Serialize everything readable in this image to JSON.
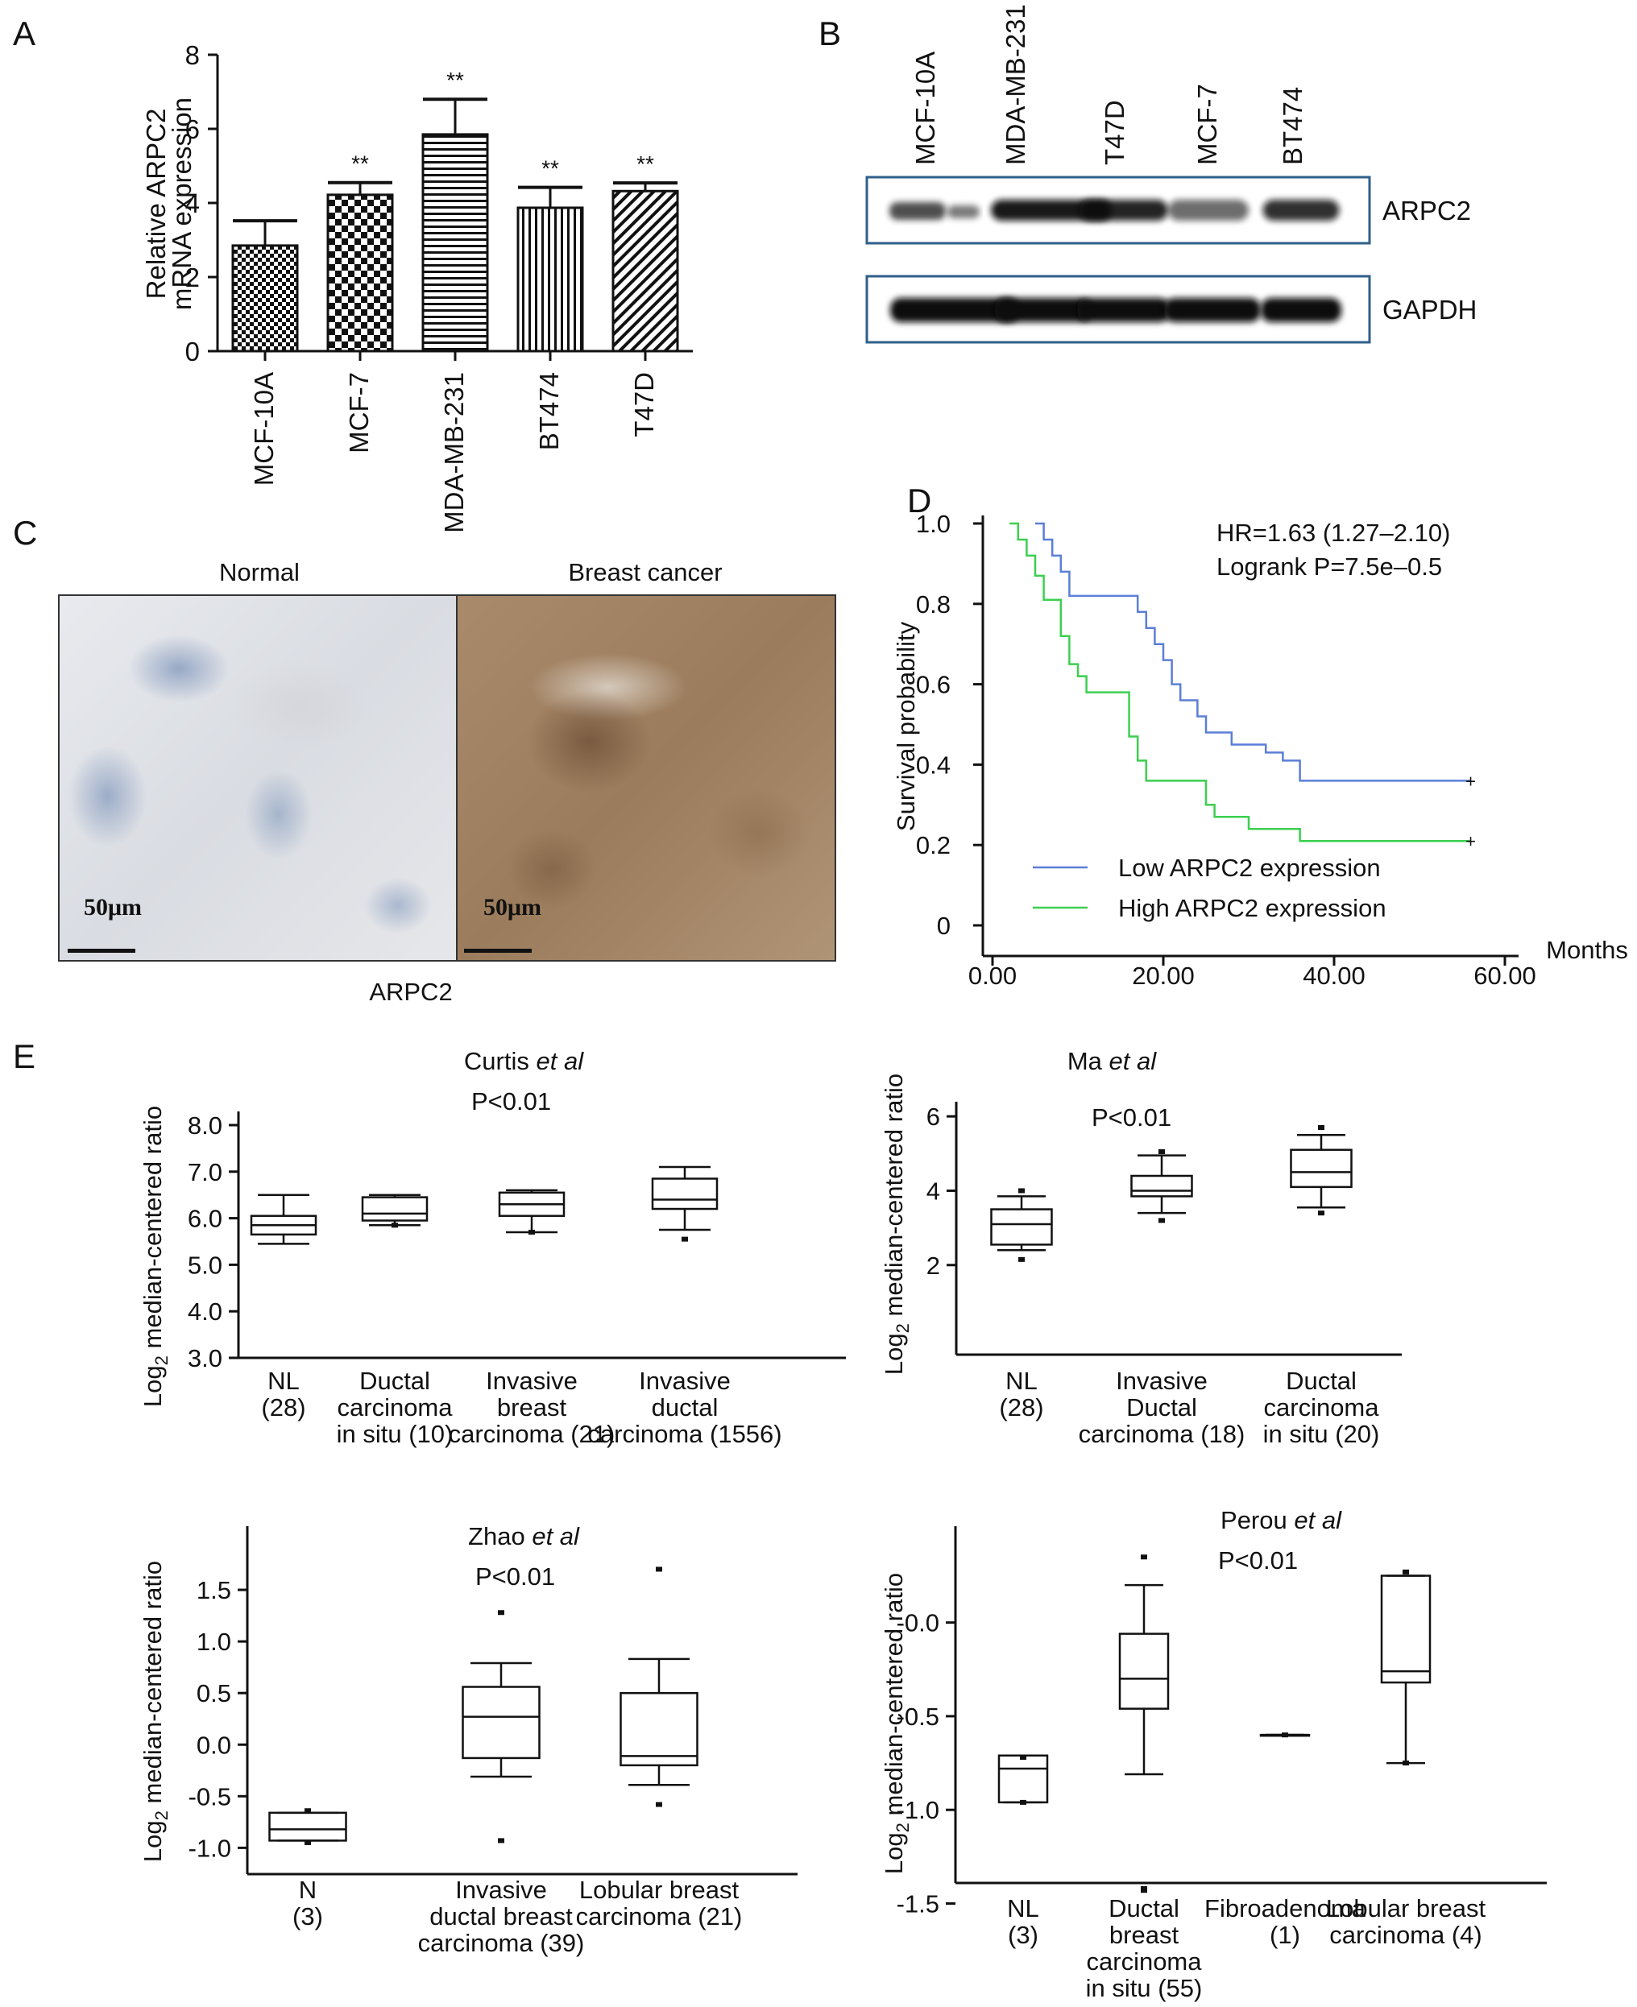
{
  "panels": {
    "a": "A",
    "b": "B",
    "c": "C",
    "d": "D",
    "e": "E"
  },
  "chart_data": [
    {
      "panel": "A",
      "type": "bar",
      "ylabel": [
        "Relative ARPC2",
        "mRNA expression"
      ],
      "ylim": [
        0,
        8
      ],
      "yticks": [
        0,
        2,
        4,
        6,
        8
      ],
      "categories": [
        "MCF-10A",
        "MCF-7",
        "MDA-MB-231",
        "BT474",
        "T47D"
      ],
      "values": [
        2.85,
        4.22,
        5.85,
        3.87,
        4.32
      ],
      "errors": [
        0.67,
        0.33,
        0.95,
        0.55,
        0.22
      ],
      "significance": [
        "",
        "**",
        "**",
        "**",
        "**"
      ],
      "patterns": [
        "checker-small",
        "checker-large",
        "horizontal-lines",
        "vertical-lines",
        "diagonal-lines"
      ]
    },
    {
      "panel": "B",
      "type": "western-blot",
      "lanes": [
        "MCF-10A",
        "MDA-MB-231",
        "T47D",
        "MCF-7",
        "BT474"
      ],
      "bands": [
        {
          "name": "ARPC2",
          "intensity": [
            0.8,
            0.95,
            0.9,
            0.6,
            0.85
          ]
        },
        {
          "name": "GAPDH",
          "intensity": [
            1,
            1,
            1,
            1,
            1
          ]
        }
      ],
      "border_color": "#2f5f8a"
    },
    {
      "panel": "D",
      "type": "line",
      "ylabel": "Survival probability",
      "xlabel": "Months",
      "xlim": [
        0,
        60
      ],
      "ylim": [
        0,
        1
      ],
      "xticks": [
        "0.00",
        "20.00",
        "40.00",
        "60.00"
      ],
      "yticks": [
        "0",
        "0.2",
        "0.4",
        "0.6",
        "0.8",
        "1.0"
      ],
      "annotations": [
        "HR=1.63 (1.27–2.10)",
        "Logrank P=7.5e–0.5"
      ],
      "series": [
        {
          "name": "Low ARPC2 expression",
          "color": "#5b7fd6",
          "points": [
            [
              5,
              1
            ],
            [
              6,
              0.96
            ],
            [
              7,
              0.92
            ],
            [
              8,
              0.88
            ],
            [
              9,
              0.82
            ],
            [
              16,
              0.82
            ],
            [
              17,
              0.78
            ],
            [
              18,
              0.74
            ],
            [
              19,
              0.7
            ],
            [
              20,
              0.66
            ],
            [
              21,
              0.6
            ],
            [
              22,
              0.56
            ],
            [
              24,
              0.52
            ],
            [
              25,
              0.48
            ],
            [
              28,
              0.45
            ],
            [
              32,
              0.43
            ],
            [
              34,
              0.41
            ],
            [
              36,
              0.36
            ],
            [
              56,
              0.36
            ]
          ]
        },
        {
          "name": "High ARPC2 expression",
          "color": "#3bcf4f",
          "points": [
            [
              2,
              1
            ],
            [
              3,
              0.96
            ],
            [
              4,
              0.92
            ],
            [
              5,
              0.87
            ],
            [
              6,
              0.81
            ],
            [
              8,
              0.72
            ],
            [
              9,
              0.65
            ],
            [
              10,
              0.62
            ],
            [
              11,
              0.58
            ],
            [
              15,
              0.58
            ],
            [
              16,
              0.47
            ],
            [
              17,
              0.41
            ],
            [
              18,
              0.36
            ],
            [
              24,
              0.36
            ],
            [
              25,
              0.3
            ],
            [
              26,
              0.27
            ],
            [
              30,
              0.24
            ],
            [
              36,
              0.21
            ],
            [
              56,
              0.21
            ]
          ]
        }
      ]
    },
    {
      "panel": "E1",
      "type": "box",
      "title_main": "Curtis ",
      "title_italic": "et al",
      "pvalue": "P<0.01",
      "ylabel": "median-centered ratio",
      "ylim": [
        3,
        8
      ],
      "yticks": [
        "3.0",
        "4.0",
        "5.0",
        "6.0",
        "7.0",
        "8.0"
      ],
      "categories": [
        [
          "NL",
          "(28)"
        ],
        [
          "Ductal",
          "carcinoma",
          "in situ (10)"
        ],
        [
          "Invasive",
          "breast",
          "carcinoma (21)"
        ],
        [
          "Invasive",
          "ductal",
          "carcinoma (1556)"
        ]
      ],
      "boxes": [
        {
          "min": 5.45,
          "q1": 5.65,
          "median": 5.85,
          "q3": 6.05,
          "max": 6.5,
          "outliers": []
        },
        {
          "min": 5.85,
          "q1": 5.95,
          "median": 6.1,
          "q3": 6.45,
          "max": 6.5,
          "outliers": [
            5.85
          ]
        },
        {
          "min": 5.7,
          "q1": 6.05,
          "median": 6.3,
          "q3": 6.55,
          "max": 6.6,
          "outliers": [
            5.7
          ]
        },
        {
          "min": 5.75,
          "q1": 6.2,
          "median": 6.4,
          "q3": 6.85,
          "max": 7.1,
          "outliers": [
            5.55
          ]
        }
      ]
    },
    {
      "panel": "E2",
      "type": "box",
      "title_main": "Ma ",
      "title_italic": "et al",
      "pvalue": "P<0.01",
      "ylabel": "median-centered ratio",
      "ylim": [
        0.5,
        7
      ],
      "yticks": [
        "2",
        "4",
        "6"
      ],
      "categories": [
        [
          "NL",
          "(28)"
        ],
        [
          "Invasive",
          "Ductal",
          "carcinoma (18)"
        ],
        [
          "Ductal",
          "carcinoma",
          "in situ (20)"
        ]
      ],
      "boxes": [
        {
          "min": 2.4,
          "q1": 2.55,
          "median": 3.1,
          "q3": 3.5,
          "max": 3.85,
          "outliers": [
            2.15,
            4.0
          ]
        },
        {
          "min": 3.4,
          "q1": 3.85,
          "median": 4.0,
          "q3": 4.4,
          "max": 4.95,
          "outliers": [
            3.2,
            5.05
          ]
        },
        {
          "min": 3.55,
          "q1": 4.1,
          "median": 4.5,
          "q3": 5.1,
          "max": 5.5,
          "outliers": [
            3.4,
            5.7
          ]
        }
      ]
    },
    {
      "panel": "E3",
      "type": "box",
      "title_main": "Zhao ",
      "title_italic": "et al",
      "pvalue": "P<0.01",
      "ylabel": "median-centered ratio",
      "ylim": [
        -1.2,
        2.0
      ],
      "yticks": [
        "-1.0",
        "-0.5",
        "0.0",
        "0.5",
        "1.0",
        "1.5"
      ],
      "categories": [
        [
          "N",
          "(3)"
        ],
        [
          "Invasive",
          "ductal breast",
          "carcinoma (39)"
        ],
        [
          "Lobular breast",
          "carcinoma (21)"
        ]
      ],
      "boxes": [
        {
          "min": -0.93,
          "q1": -0.93,
          "median": -0.82,
          "q3": -0.66,
          "max": -0.66,
          "outliers": [
            -0.95,
            -0.64
          ]
        },
        {
          "min": -0.31,
          "q1": -0.13,
          "median": 0.27,
          "q3": 0.56,
          "max": 0.79,
          "outliers": [
            1.28,
            -0.93
          ]
        },
        {
          "min": -0.39,
          "q1": -0.2,
          "median": -0.11,
          "q3": 0.5,
          "max": 0.83,
          "outliers": [
            1.7,
            -0.58
          ]
        }
      ]
    },
    {
      "panel": "E4",
      "type": "box",
      "title_main": "Perou ",
      "title_italic": "et al",
      "pvalue": "P<0.01",
      "ylabel": "median-centered ratio",
      "ylim": [
        -1.7,
        0.45
      ],
      "yticks": [
        "-1.5",
        "-1.0",
        "-0.5",
        "-0.0"
      ],
      "categories": [
        [
          "NL",
          "(3)"
        ],
        [
          "Ductal",
          "breast",
          "carcinoma",
          "in situ (55)"
        ],
        [
          "Fibroadenoma",
          "(1)"
        ],
        [
          "Lobular breast",
          "carcinoma (4)"
        ]
      ],
      "boxes": [
        {
          "min": -0.96,
          "q1": -0.96,
          "median": -0.78,
          "q3": -0.71,
          "max": -0.71,
          "outliers": [
            -0.96,
            -0.72
          ]
        },
        {
          "min": -0.81,
          "q1": -0.46,
          "median": -0.3,
          "q3": -0.06,
          "max": 0.2,
          "outliers": [
            0.35,
            -1.42,
            -1.43
          ]
        },
        {
          "min": -0.6,
          "q1": -0.6,
          "median": -0.6,
          "q3": -0.6,
          "max": -0.6,
          "outliers": [
            -0.6
          ]
        },
        {
          "min": -0.75,
          "q1": -0.32,
          "median": -0.26,
          "q3": 0.25,
          "max": 0.25,
          "outliers": [
            0.27,
            -0.75
          ]
        }
      ]
    }
  ],
  "ihc": {
    "normal_title": "Normal",
    "cancer_title": "Breast cancer",
    "scale_label": "50μm",
    "caption": "ARPC2"
  }
}
